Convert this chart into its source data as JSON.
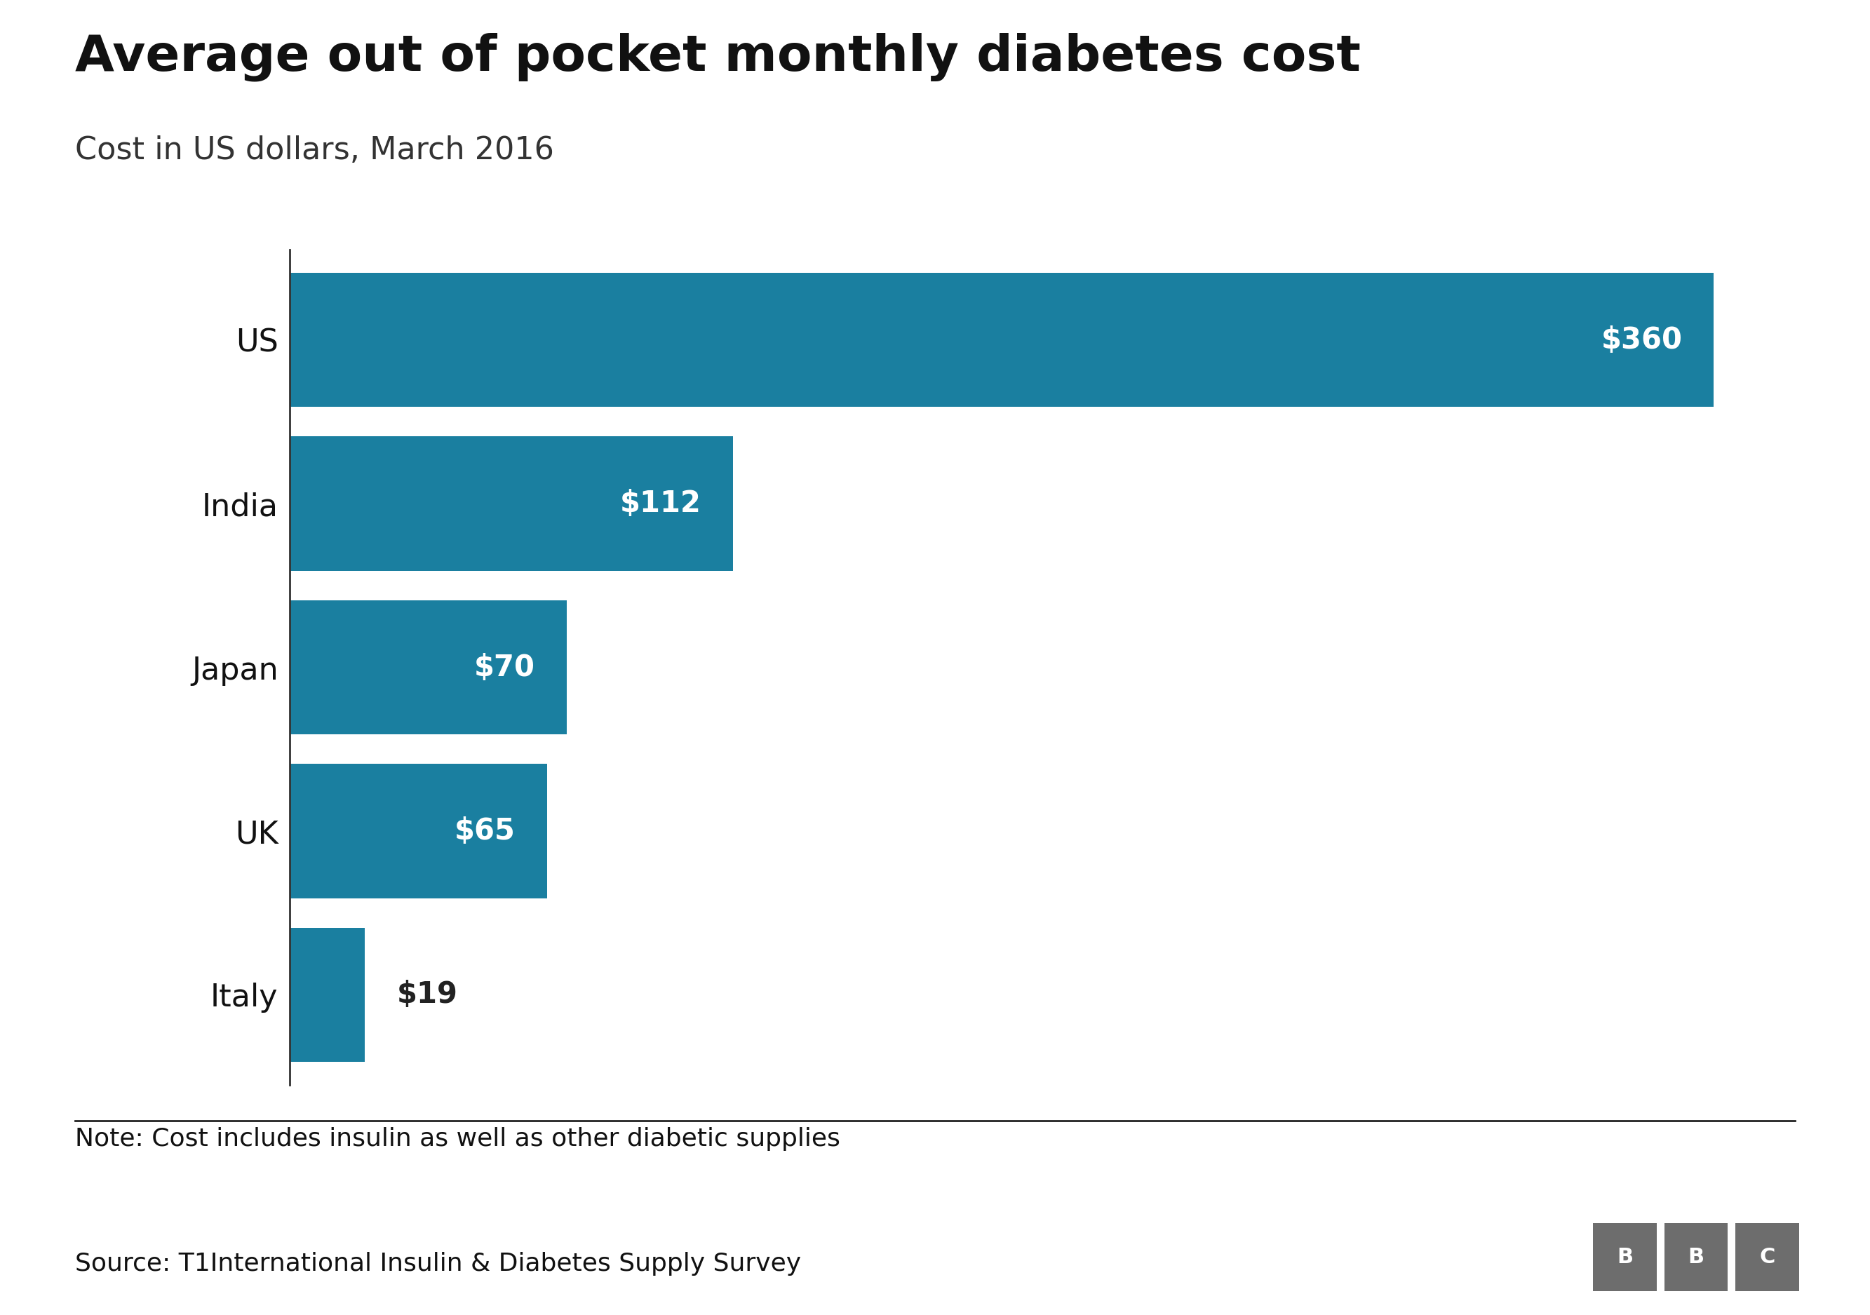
{
  "title": "Average out of pocket monthly diabetes cost",
  "subtitle": "Cost in US dollars, March 2016",
  "note": "Note: Cost includes insulin as well as other diabetic supplies",
  "source": "Source: T1International Insulin & Diabetes Supply Survey",
  "categories": [
    "US",
    "India",
    "Japan",
    "UK",
    "Italy"
  ],
  "values": [
    360,
    112,
    70,
    65,
    19
  ],
  "bar_color": "#1a7fa0",
  "label_color_inside": "#ffffff",
  "label_color_outside": "#222222",
  "background_color": "#ffffff",
  "title_fontsize": 52,
  "subtitle_fontsize": 32,
  "bar_label_fontsize": 30,
  "axis_label_fontsize": 32,
  "note_fontsize": 26,
  "source_fontsize": 26,
  "bbc_fontsize": 22,
  "xlim": [
    0,
    390
  ],
  "bar_height": 0.82
}
